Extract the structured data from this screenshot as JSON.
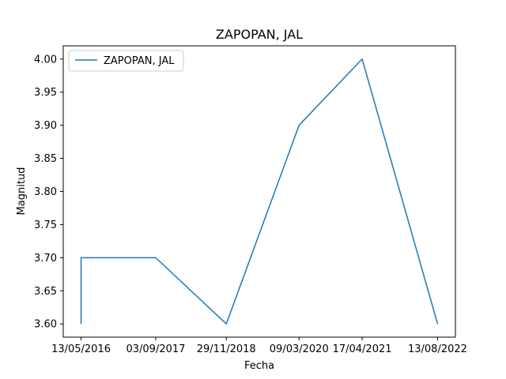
{
  "chart_data": {
    "type": "line",
    "title": "ZAPOPAN, JAL",
    "xlabel": "Fecha",
    "ylabel": "Magnitud",
    "x_tick_labels": [
      "13/05/2016",
      "03/09/2017",
      "29/11/2018",
      "09/03/2020",
      "17/04/2021",
      "13/08/2022"
    ],
    "y_tick_labels": [
      "3.60",
      "3.65",
      "3.70",
      "3.75",
      "3.80",
      "3.85",
      "3.90",
      "3.95",
      "4.00"
    ],
    "y_ticks": [
      3.6,
      3.65,
      3.7,
      3.75,
      3.8,
      3.85,
      3.9,
      3.95,
      4.0
    ],
    "ylim": [
      3.58,
      4.02
    ],
    "legend_position": "upper-left",
    "grid": false,
    "series": [
      {
        "name": "ZAPOPAN, JAL",
        "color": "#1f77b4",
        "x": [
          "13/05/2016",
          "13/05/2016",
          "13/05/2016",
          "03/09/2017",
          "29/11/2018",
          "09/03/2020",
          "17/04/2021",
          "13/08/2022"
        ],
        "y": [
          3.6,
          3.7,
          3.7,
          3.7,
          3.6,
          3.9,
          4.0,
          3.6
        ]
      }
    ]
  }
}
